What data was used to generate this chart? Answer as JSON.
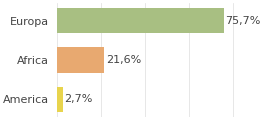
{
  "categories": [
    "America",
    "Africa",
    "Europa"
  ],
  "values": [
    2.7,
    21.6,
    75.7
  ],
  "labels": [
    "2,7%",
    "21,6%",
    "75,7%"
  ],
  "bar_colors": [
    "#e8d44d",
    "#e8a970",
    "#a8bf82"
  ],
  "background_color": "#ffffff",
  "xlim": [
    0,
    100
  ],
  "label_fontsize": 8,
  "tick_fontsize": 8,
  "bar_height": 0.65
}
